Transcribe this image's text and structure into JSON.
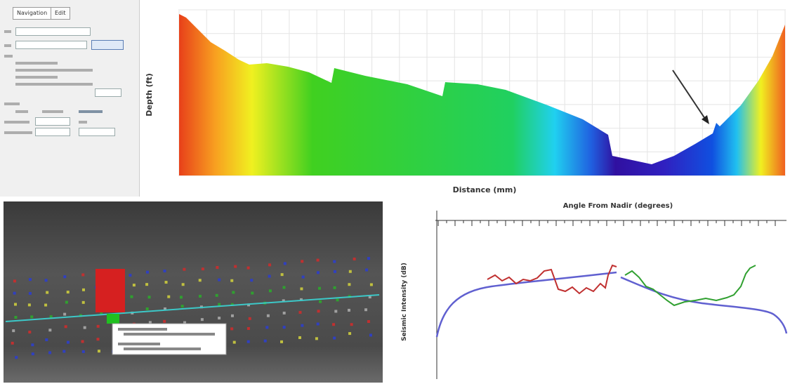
{
  "panel": {
    "tabs": [
      "Navigation",
      "Edit"
    ]
  },
  "top_chart": {
    "y_label": "Depth (ft)",
    "x_label": "Distance (mm)"
  },
  "bottom_chart": {
    "title": "Angle From Nadir (degrees)",
    "y_label": "Seismic Intensity (dB)"
  }
}
